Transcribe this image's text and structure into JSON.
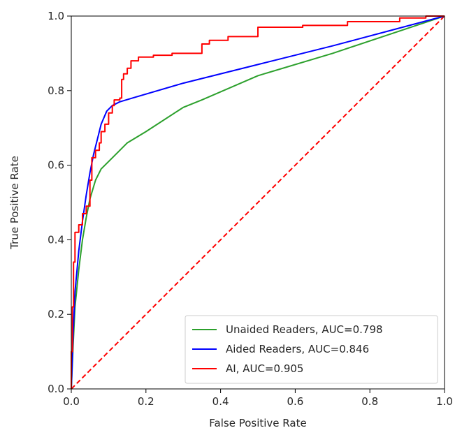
{
  "chart_data": {
    "type": "line",
    "title": "",
    "xlabel": "False Positive Rate",
    "ylabel": "True Positive Rate",
    "xlim": [
      0,
      1
    ],
    "ylim": [
      0,
      1
    ],
    "x_ticks": [
      0.0,
      0.2,
      0.4,
      0.6,
      0.8,
      1.0
    ],
    "y_ticks": [
      0.0,
      0.2,
      0.4,
      0.6,
      0.8,
      1.0
    ],
    "x_tick_labels": [
      "0.0",
      "0.2",
      "0.4",
      "0.6",
      "0.8",
      "1.0"
    ],
    "y_tick_labels": [
      "0.0",
      "0.2",
      "0.4",
      "0.6",
      "0.8",
      "1.0"
    ],
    "grid": false,
    "legend_position": "bottom-right",
    "series": [
      {
        "name": "Unaided Readers, AUC=0.798",
        "color": "#2ca02c",
        "style": "solid",
        "points": [
          [
            0.0,
            0.0
          ],
          [
            0.005,
            0.12
          ],
          [
            0.01,
            0.22
          ],
          [
            0.02,
            0.32
          ],
          [
            0.03,
            0.4
          ],
          [
            0.04,
            0.46
          ],
          [
            0.05,
            0.51
          ],
          [
            0.065,
            0.56
          ],
          [
            0.08,
            0.59
          ],
          [
            0.1,
            0.61
          ],
          [
            0.125,
            0.635
          ],
          [
            0.15,
            0.66
          ],
          [
            0.2,
            0.69
          ],
          [
            0.3,
            0.755
          ],
          [
            0.35,
            0.775
          ],
          [
            0.5,
            0.84
          ],
          [
            0.7,
            0.9
          ],
          [
            0.85,
            0.95
          ],
          [
            1.0,
            1.0
          ]
        ]
      },
      {
        "name": "Aided Readers, AUC=0.846",
        "color": "#0000ff",
        "style": "solid",
        "points": [
          [
            0.0,
            0.0
          ],
          [
            0.005,
            0.15
          ],
          [
            0.01,
            0.26
          ],
          [
            0.02,
            0.37
          ],
          [
            0.03,
            0.45
          ],
          [
            0.04,
            0.52
          ],
          [
            0.05,
            0.58
          ],
          [
            0.06,
            0.63
          ],
          [
            0.07,
            0.67
          ],
          [
            0.08,
            0.71
          ],
          [
            0.095,
            0.745
          ],
          [
            0.11,
            0.76
          ],
          [
            0.13,
            0.77
          ],
          [
            0.17,
            0.782
          ],
          [
            0.3,
            0.82
          ],
          [
            0.5,
            0.87
          ],
          [
            0.7,
            0.92
          ],
          [
            0.85,
            0.96
          ],
          [
            1.0,
            1.0
          ]
        ]
      },
      {
        "name": "AI, AUC=0.905",
        "color": "#ff0000",
        "style": "solid",
        "points": [
          [
            0.0,
            0.0
          ],
          [
            0.0,
            0.1
          ],
          [
            0.003,
            0.1
          ],
          [
            0.003,
            0.22
          ],
          [
            0.006,
            0.22
          ],
          [
            0.006,
            0.34
          ],
          [
            0.01,
            0.34
          ],
          [
            0.01,
            0.42
          ],
          [
            0.02,
            0.42
          ],
          [
            0.02,
            0.44
          ],
          [
            0.03,
            0.44
          ],
          [
            0.03,
            0.47
          ],
          [
            0.04,
            0.47
          ],
          [
            0.04,
            0.49
          ],
          [
            0.05,
            0.49
          ],
          [
            0.05,
            0.56
          ],
          [
            0.055,
            0.56
          ],
          [
            0.055,
            0.62
          ],
          [
            0.065,
            0.62
          ],
          [
            0.065,
            0.64
          ],
          [
            0.075,
            0.64
          ],
          [
            0.075,
            0.66
          ],
          [
            0.08,
            0.66
          ],
          [
            0.08,
            0.69
          ],
          [
            0.09,
            0.69
          ],
          [
            0.09,
            0.71
          ],
          [
            0.1,
            0.71
          ],
          [
            0.1,
            0.74
          ],
          [
            0.11,
            0.74
          ],
          [
            0.11,
            0.76
          ],
          [
            0.115,
            0.76
          ],
          [
            0.115,
            0.775
          ],
          [
            0.13,
            0.775
          ],
          [
            0.13,
            0.78
          ],
          [
            0.135,
            0.78
          ],
          [
            0.135,
            0.83
          ],
          [
            0.14,
            0.83
          ],
          [
            0.14,
            0.845
          ],
          [
            0.15,
            0.845
          ],
          [
            0.15,
            0.86
          ],
          [
            0.16,
            0.86
          ],
          [
            0.16,
            0.88
          ],
          [
            0.18,
            0.88
          ],
          [
            0.18,
            0.89
          ],
          [
            0.22,
            0.89
          ],
          [
            0.22,
            0.895
          ],
          [
            0.27,
            0.895
          ],
          [
            0.27,
            0.9
          ],
          [
            0.35,
            0.9
          ],
          [
            0.35,
            0.925
          ],
          [
            0.37,
            0.925
          ],
          [
            0.37,
            0.935
          ],
          [
            0.42,
            0.935
          ],
          [
            0.42,
            0.945
          ],
          [
            0.5,
            0.945
          ],
          [
            0.5,
            0.97
          ],
          [
            0.62,
            0.97
          ],
          [
            0.62,
            0.975
          ],
          [
            0.74,
            0.975
          ],
          [
            0.74,
            0.985
          ],
          [
            0.88,
            0.985
          ],
          [
            0.88,
            0.995
          ],
          [
            0.95,
            0.995
          ],
          [
            0.95,
            1.0
          ],
          [
            1.0,
            1.0
          ]
        ]
      },
      {
        "name": "",
        "color": "#ff0000",
        "style": "dashed",
        "points": [
          [
            0.0,
            0.0
          ],
          [
            1.0,
            1.0
          ]
        ]
      }
    ]
  }
}
